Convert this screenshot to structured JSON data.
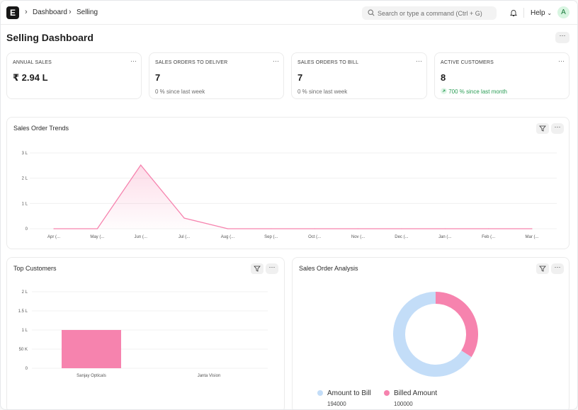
{
  "navbar": {
    "logo_letter": "E",
    "breadcrumbs": [
      "Dashboard",
      "Selling"
    ],
    "search_placeholder": "Search or type a command (Ctrl + G)",
    "help_label": "Help",
    "avatar_initial": "A"
  },
  "page": {
    "title": "Selling Dashboard"
  },
  "cards": [
    {
      "label": "ANNUAL SALES",
      "value": "₹ 2.94 L",
      "sub": ""
    },
    {
      "label": "SALES ORDERS TO DELIVER",
      "value": "7",
      "sub": "0 % since last week"
    },
    {
      "label": "SALES ORDERS TO BILL",
      "value": "7",
      "sub": "0 % since last week"
    },
    {
      "label": "ACTIVE CUSTOMERS",
      "value": "8",
      "sub": "700 % since last month"
    }
  ],
  "colors": {
    "accent_pink": "#f683ae",
    "light_blue": "#c3ddf8",
    "positive_green": "#2a9d55"
  },
  "chart_data": [
    {
      "type": "area",
      "title": "Sales Order Trends",
      "categories": [
        "Apr (...",
        "May (...",
        "Jun (...",
        "Jul (...",
        "Aug (...",
        "Sep (...",
        "Oct (...",
        "Nov (...",
        "Dec (...",
        "Jan (...",
        "Feb (...",
        "Mar (..."
      ],
      "values": [
        0,
        0,
        2.52,
        0.42,
        0,
        0,
        0,
        0,
        0,
        0,
        0,
        0
      ],
      "yticks": [
        "0",
        "1 L",
        "2 L",
        "3 L"
      ],
      "ylim": [
        0,
        3
      ],
      "grid": true
    },
    {
      "type": "bar",
      "title": "Top Customers",
      "categories": [
        "Sanjay Opticals",
        "Janta Vision"
      ],
      "values": [
        1,
        0
      ],
      "yticks": [
        "0",
        "50 K",
        "1 L",
        "1.5 L",
        "2 L"
      ],
      "ylim": [
        0,
        2
      ],
      "grid": true
    },
    {
      "type": "pie",
      "title": "Sales Order Analysis",
      "labels": [
        "Amount to Bill",
        "Billed Amount"
      ],
      "values": [
        194000,
        100000
      ],
      "value_labels": [
        "194000",
        "100000"
      ]
    }
  ]
}
